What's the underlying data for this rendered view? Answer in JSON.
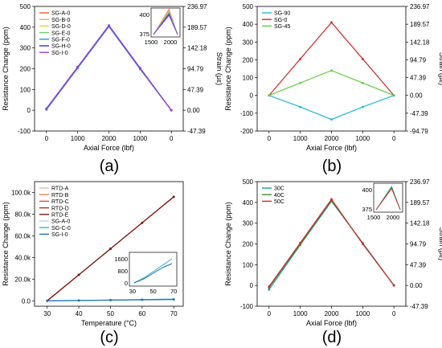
{
  "panel_labels": [
    "(a)",
    "(b)",
    "(c)",
    "(d)"
  ],
  "chart_data": [
    {
      "panel": "(a)",
      "type": "line",
      "xlabel": "Axial Force (lbf)",
      "ylabel": "Resistance Change (ppm)",
      "y2label": "Strain (με)",
      "x_ticklabels": [
        "0",
        "1000",
        "2000",
        "1000",
        "0"
      ],
      "y_ticks": [
        -100,
        0,
        100,
        200,
        300,
        400,
        500
      ],
      "y2_ticklabels": [
        "236.97",
        "189.57",
        "142.18",
        "94.79",
        "47.39",
        "0.00",
        "-47.39"
      ],
      "ylim": [
        -100,
        500
      ],
      "legend_placement": "top-left",
      "series": [
        {
          "name": "SG-A-0",
          "color": "#ef5a28",
          "values": [
            5,
            205,
            405,
            200,
            0
          ]
        },
        {
          "name": "SG-B-0",
          "color": "#f5a07a",
          "values": [
            6,
            206,
            406,
            201,
            0
          ]
        },
        {
          "name": "SG-D-0",
          "color": "#f2c94c",
          "values": [
            4,
            204,
            404,
            199,
            0
          ]
        },
        {
          "name": "SG-E-0",
          "color": "#67d16b",
          "values": [
            7,
            207,
            407,
            202,
            0
          ]
        },
        {
          "name": "SG-F-0",
          "color": "#2a8be8",
          "values": [
            3,
            203,
            403,
            198,
            0
          ]
        },
        {
          "name": "SG-H-0",
          "color": "#3a2bd6",
          "values": [
            8,
            208,
            408,
            203,
            0
          ]
        },
        {
          "name": "SG-I-0",
          "color": "#a33fd8",
          "values": [
            9,
            209,
            409,
            204,
            0
          ]
        }
      ],
      "inset": {
        "x_ticklabels": [
          "1500",
          "2000"
        ],
        "y_ticklabels": [
          "400",
          "375"
        ]
      }
    },
    {
      "panel": "(b)",
      "type": "line",
      "xlabel": "Axial Force (lbf)",
      "ylabel": "Resistance Change (ppm)",
      "y2label": "Strain (με)",
      "x_ticklabels": [
        "0",
        "1000",
        "2000",
        "1000",
        "0"
      ],
      "y_ticks": [
        -200,
        -100,
        0,
        100,
        200,
        300,
        400,
        500
      ],
      "y2_ticklabels": [
        "236.97",
        "189.57",
        "142.18",
        "94.79",
        "47.39",
        "0.00",
        "-47.39",
        "-94.79"
      ],
      "ylim": [
        -200,
        500
      ],
      "legend_placement": "top-left",
      "series": [
        {
          "name": "SG-90",
          "color": "#1fb8d6",
          "values": [
            0,
            -65,
            -135,
            -65,
            0
          ]
        },
        {
          "name": "SG-0",
          "color": "#d62828",
          "values": [
            0,
            205,
            410,
            205,
            0
          ]
        },
        {
          "name": "SG-45",
          "color": "#5fcf3f",
          "values": [
            0,
            70,
            140,
            70,
            0
          ]
        }
      ]
    },
    {
      "panel": "(c)",
      "type": "line",
      "xlabel": "Temperature (°C)",
      "ylabel": "Resistance Change (ppm)",
      "x": [
        30,
        40,
        50,
        60,
        70
      ],
      "x_ticklabels": [
        "30",
        "40",
        "50",
        "60",
        "70"
      ],
      "y_ticks": [
        0,
        20000,
        40000,
        60000,
        80000,
        100000
      ],
      "y_ticklabels": [
        "0.0",
        "20.0k",
        "40.0k",
        "60.0k",
        "80.0k",
        "100.0k"
      ],
      "ylim": [
        -5000,
        110000
      ],
      "xlim": [
        26,
        73
      ],
      "legend_placement": "top-left",
      "series": [
        {
          "name": "RTD-A",
          "color": "#f3b6a0",
          "values": [
            0,
            24000,
            48000,
            72000,
            96000
          ]
        },
        {
          "name": "RTD-B",
          "color": "#e8845c",
          "values": [
            0,
            24000,
            48000,
            72000,
            96000
          ]
        },
        {
          "name": "RTD-C",
          "color": "#d9572e",
          "values": [
            0,
            24000,
            48000,
            72000,
            96000
          ]
        },
        {
          "name": "RTD-D",
          "color": "#b5301d",
          "values": [
            0,
            24000,
            48000,
            72000,
            96000
          ]
        },
        {
          "name": "RTD-E",
          "color": "#7a1c14",
          "values": [
            0,
            24000,
            48000,
            72000,
            96000
          ]
        },
        {
          "name": "SG-A-0",
          "color": "#a8d8f0",
          "values": [
            0,
            300,
            700,
            1100,
            1500
          ]
        },
        {
          "name": "SG-C-0",
          "color": "#34b4d8",
          "values": [
            0,
            300,
            700,
            1100,
            1500
          ]
        },
        {
          "name": "SG-I-0",
          "color": "#1f6fb2",
          "values": [
            0,
            250,
            600,
            950,
            1200
          ]
        }
      ],
      "inset": {
        "x_ticklabels": [
          "30",
          "50",
          "70"
        ],
        "y_ticklabels": [
          "1600",
          "800",
          "0"
        ]
      }
    },
    {
      "panel": "(d)",
      "type": "line",
      "xlabel": "Axial Force (lbf)",
      "ylabel": "Resistance Change (ppm)",
      "y2label": "Strain (με)",
      "x_ticklabels": [
        "0",
        "1000",
        "2000",
        "1000",
        "0"
      ],
      "y_ticks": [
        -100,
        0,
        100,
        200,
        300,
        400,
        500
      ],
      "y2_ticklabels": [
        "236.97",
        "189.57",
        "142.18",
        "94.79",
        "47.39",
        "0.00",
        "-47.39"
      ],
      "ylim": [
        -100,
        500
      ],
      "legend_placement": "top-left",
      "series": [
        {
          "name": "30C",
          "color": "#16a0a8",
          "values": [
            -20,
            195,
            405,
            205,
            0
          ]
        },
        {
          "name": "40C",
          "color": "#4a8a2a",
          "values": [
            -10,
            200,
            410,
            202,
            0
          ]
        },
        {
          "name": "50C",
          "color": "#d62828",
          "values": [
            -5,
            205,
            415,
            200,
            0
          ]
        }
      ],
      "inset": {
        "x_ticklabels": [
          "1500",
          "2000"
        ],
        "y_ticklabels": [
          "400",
          "375"
        ]
      }
    }
  ]
}
